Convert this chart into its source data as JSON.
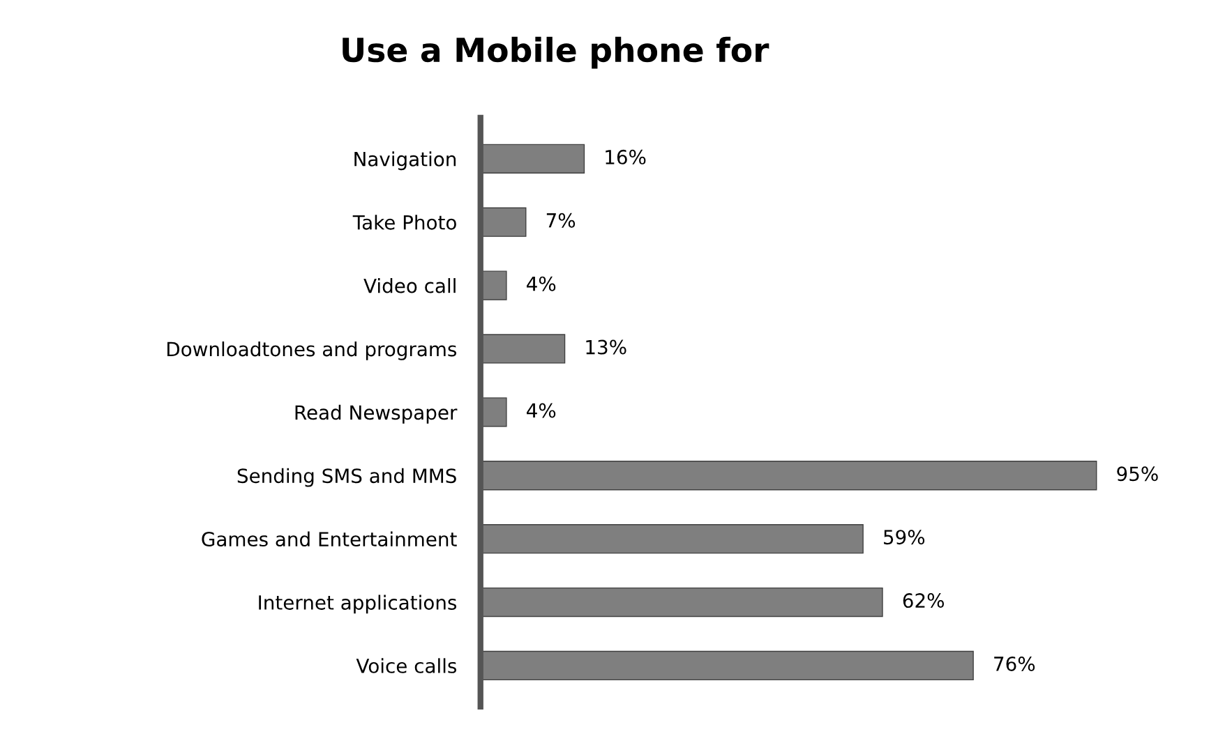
{
  "chart_data": {
    "type": "bar",
    "orientation": "horizontal",
    "title": "Use a Mobile phone for",
    "categories": [
      "Navigation",
      "Take Photo",
      "Video call",
      "Downloadtones and programs",
      "Read Newspaper",
      "Sending SMS and MMS",
      "Games and Entertainment",
      "Internet applications",
      "Voice calls"
    ],
    "values": [
      16,
      7,
      4,
      13,
      4,
      95,
      59,
      62,
      76
    ],
    "value_labels": [
      "16%",
      "7%",
      "4%",
      "13%",
      "4%",
      "95%",
      "59%",
      "62%",
      "76%"
    ],
    "color": "#7f7f7f",
    "grid": false,
    "legend": false
  }
}
